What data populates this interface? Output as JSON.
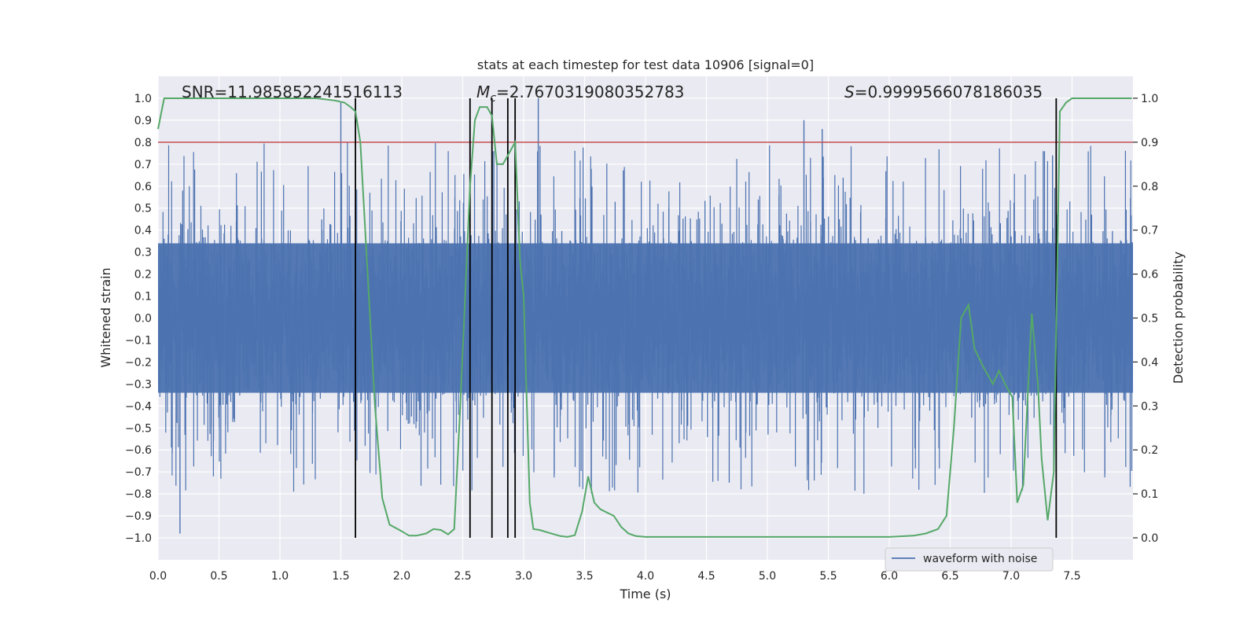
{
  "chart_data": {
    "type": "line",
    "title": "stats at each timestep for test data 10906 [signal=0]",
    "xlabel": "Time (s)",
    "ylabel_left": "Whitened strain",
    "ylabel_right": "Detection probability",
    "xlim": [
      0.0,
      8.0
    ],
    "ylim_left": [
      -1.1,
      1.1
    ],
    "ylim_right": [
      -0.05,
      1.05
    ],
    "x_ticks": [
      0.0,
      0.5,
      1.0,
      1.5,
      2.0,
      2.5,
      3.0,
      3.5,
      4.0,
      4.5,
      5.0,
      5.5,
      6.0,
      6.5,
      7.0,
      7.5
    ],
    "x_tick_labels": [
      "0.0",
      "0.5",
      "1.0",
      "1.5",
      "2.0",
      "2.5",
      "3.0",
      "3.5",
      "4.0",
      "4.5",
      "5.0",
      "5.5",
      "6.0",
      "6.5",
      "7.0",
      "7.5"
    ],
    "y_ticks_left": [
      1.0,
      0.9,
      0.8,
      0.7,
      0.6,
      0.5,
      0.4,
      0.3,
      0.2,
      0.1,
      0.0,
      -0.1,
      -0.2,
      -0.3,
      -0.4,
      -0.5,
      -0.6,
      -0.7,
      -0.8,
      -0.9,
      -1.0
    ],
    "y_tick_labels_left": [
      "1.0",
      "0.9",
      "0.8",
      "0.7",
      "0.6",
      "0.5",
      "0.4",
      "0.3",
      "0.2",
      "0.1",
      "0.0",
      "−0.1",
      "−0.2",
      "−0.3",
      "−0.4",
      "−0.5",
      "−0.6",
      "−0.7",
      "−0.8",
      "−0.9",
      "−1.0"
    ],
    "y_ticks_right": [
      1.0,
      0.9,
      0.8,
      0.7,
      0.6,
      0.5,
      0.4,
      0.3,
      0.2,
      0.1,
      0.0
    ],
    "y_tick_labels_right": [
      "1.0",
      "0.9",
      "0.8",
      "0.7",
      "0.6",
      "0.5",
      "0.4",
      "0.3",
      "0.2",
      "0.1",
      "0.0"
    ],
    "grid": true,
    "legend": {
      "placement": "lower-right",
      "entries": [
        "waveform with noise"
      ]
    },
    "annotations": {
      "snr": "SNR=11.985852241516113",
      "mc_symbol": "M",
      "mc_sub": "c",
      "mc_value": "=2.7670319080352783",
      "s_symbol": "S",
      "s_value": "=0.9999566078186035"
    },
    "threshold": {
      "axis": "right",
      "value": 0.9,
      "color": "#c44e52"
    },
    "vertical_lines": [
      1.62,
      2.56,
      2.74,
      2.87,
      2.93,
      7.37
    ],
    "series": [
      {
        "name": "waveform with noise",
        "axis": "left",
        "color": "#4c72b0",
        "envelope": {
          "amplitude": 0.34,
          "max_peak": 1.0,
          "min_peak": -0.98
        }
      },
      {
        "axis": "right",
        "color": "#55a868",
        "x": [
          0.0,
          0.05,
          0.5,
          1.0,
          1.3,
          1.45,
          1.53,
          1.58,
          1.62,
          1.66,
          1.72,
          1.78,
          1.84,
          1.9,
          2.0,
          2.06,
          2.12,
          2.2,
          2.26,
          2.32,
          2.38,
          2.43,
          2.48,
          2.52,
          2.56,
          2.6,
          2.64,
          2.7,
          2.74,
          2.78,
          2.83,
          2.87,
          2.93,
          2.97,
          3.0,
          3.05,
          3.08,
          3.13,
          3.2,
          3.3,
          3.36,
          3.42,
          3.48,
          3.53,
          3.58,
          3.63,
          3.68,
          3.74,
          3.8,
          3.86,
          3.92,
          4.0,
          4.5,
          5.0,
          5.5,
          6.0,
          6.2,
          6.3,
          6.4,
          6.47,
          6.53,
          6.59,
          6.65,
          6.7,
          6.77,
          6.85,
          6.9,
          6.95,
          7.01,
          7.05,
          7.1,
          7.17,
          7.22,
          7.25,
          7.3,
          7.35,
          7.4,
          7.45,
          7.5,
          7.55,
          7.6,
          7.7,
          7.8,
          7.99
        ],
        "y": [
          0.93,
          1.0,
          1.0,
          1.0,
          1.0,
          0.995,
          0.99,
          0.98,
          0.97,
          0.9,
          0.6,
          0.3,
          0.09,
          0.03,
          0.015,
          0.005,
          0.005,
          0.01,
          0.02,
          0.018,
          0.008,
          0.02,
          0.3,
          0.55,
          0.8,
          0.95,
          0.98,
          0.98,
          0.96,
          0.85,
          0.85,
          0.87,
          0.9,
          0.63,
          0.55,
          0.08,
          0.02,
          0.018,
          0.012,
          0.004,
          0.002,
          0.006,
          0.06,
          0.14,
          0.08,
          0.065,
          0.058,
          0.05,
          0.025,
          0.01,
          0.004,
          0.002,
          0.002,
          0.002,
          0.002,
          0.002,
          0.005,
          0.01,
          0.02,
          0.05,
          0.25,
          0.5,
          0.53,
          0.43,
          0.39,
          0.35,
          0.38,
          0.35,
          0.32,
          0.08,
          0.12,
          0.51,
          0.35,
          0.18,
          0.04,
          0.15,
          0.97,
          0.99,
          1.0,
          1.0,
          1.0,
          1.0,
          1.0,
          1.0
        ]
      }
    ]
  }
}
